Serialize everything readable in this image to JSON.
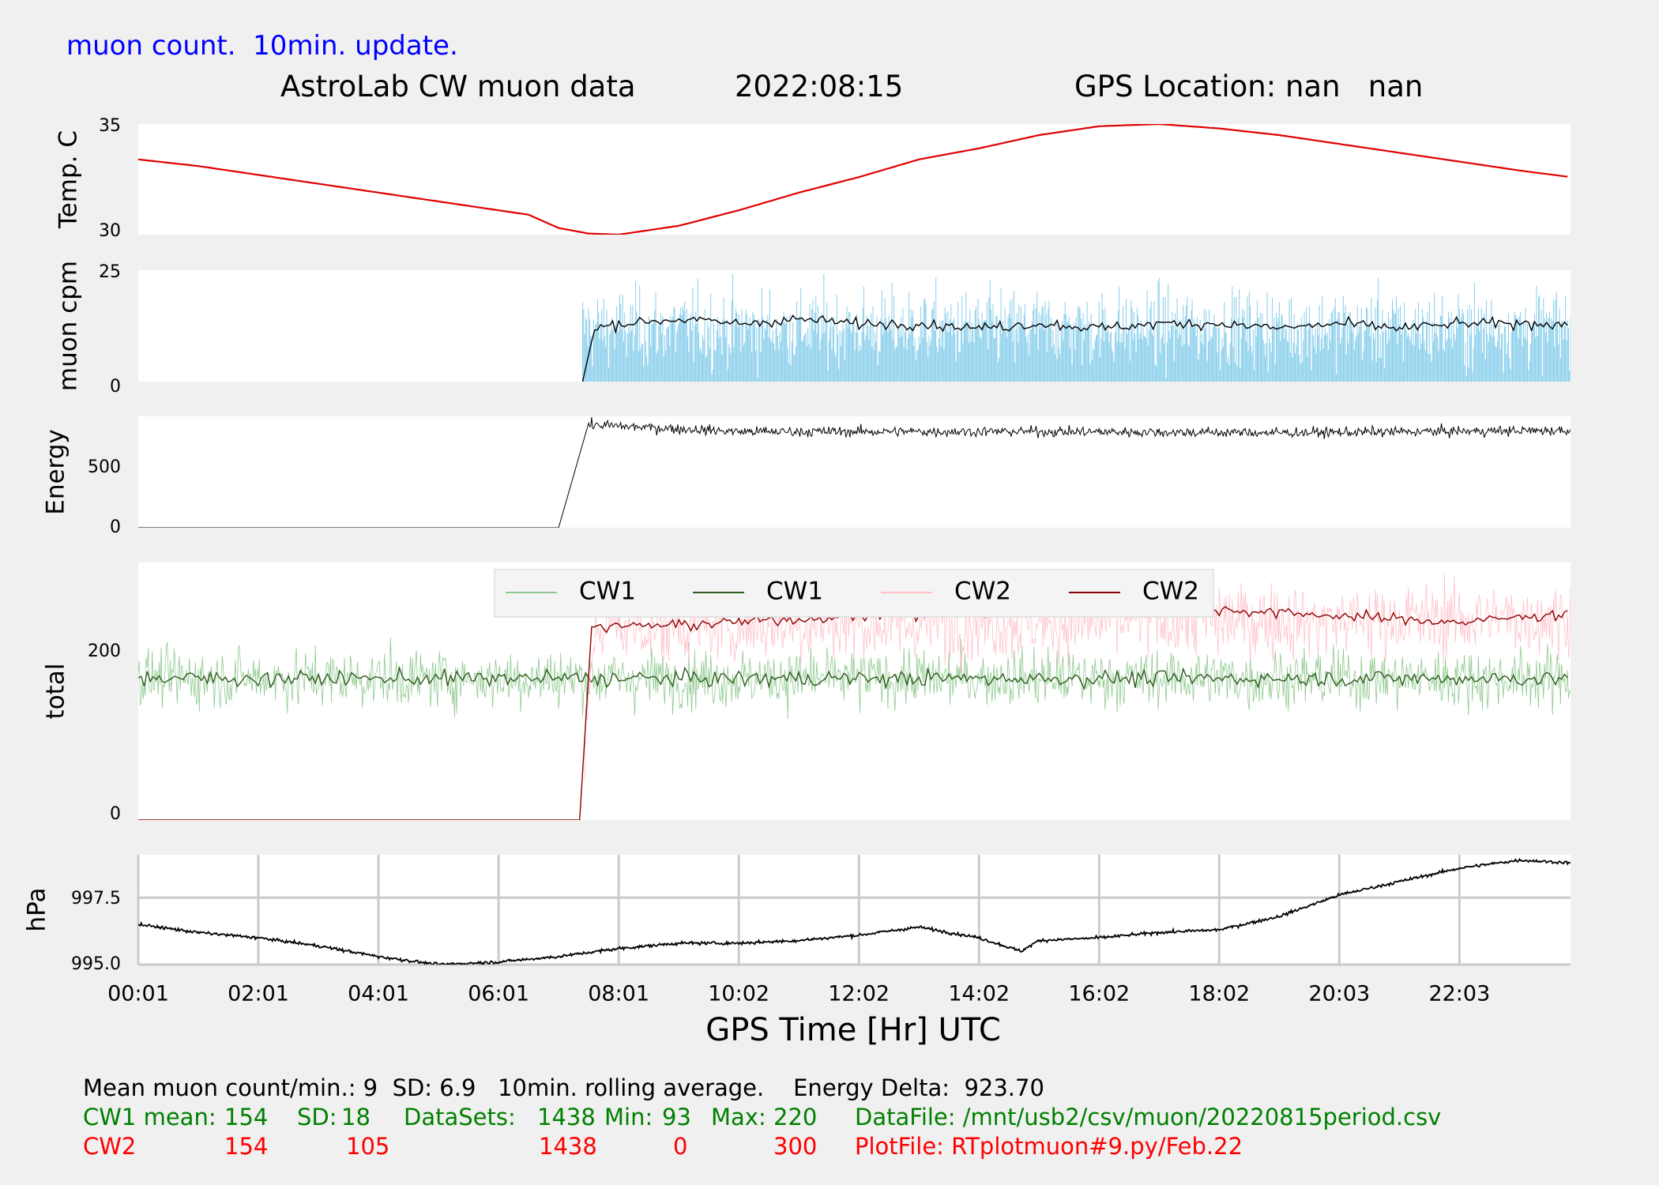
{
  "header": {
    "update_note": "muon count.  10min. update.",
    "title": "AstroLab CW muon data",
    "date": "2022:08:15",
    "gps_location": "GPS Location: nan   nan"
  },
  "xaxis": {
    "label": "GPS Time  [Hr] UTC",
    "ticks": [
      "00:01",
      "02:01",
      "04:01",
      "06:01",
      "08:01",
      "10:02",
      "12:02",
      "14:02",
      "16:02",
      "18:02",
      "20:03",
      "22:03"
    ],
    "range_hours": [
      0,
      23.85
    ]
  },
  "colors": {
    "temperature": "#e00000",
    "muon_bars": "#87ceeb",
    "muon_avg": "#000000",
    "energy": "#000000",
    "cw1_raw": "#8fc98f",
    "cw1_avg": "#2e5c1e",
    "cw2_raw": "#ffc0c8",
    "cw2_avg": "#8b0000",
    "pressure": "#000000"
  },
  "chart_data": [
    {
      "type": "line",
      "ylabel": "Temp. C",
      "ylim": [
        30,
        35
      ],
      "yticks": [
        "35",
        "30"
      ],
      "series": [
        {
          "x": [
            0,
            1,
            2,
            3,
            4,
            5,
            6.5,
            7,
            7.5,
            8,
            9,
            10,
            11,
            12,
            13,
            14,
            15,
            16,
            17,
            18,
            19,
            20,
            21,
            22,
            23,
            23.85
          ],
          "values": [
            33.4,
            33.1,
            32.7,
            32.3,
            31.9,
            31.5,
            30.9,
            30.3,
            30.05,
            30.0,
            30.4,
            31.1,
            31.9,
            32.6,
            33.4,
            33.9,
            34.5,
            34.9,
            35.0,
            34.8,
            34.5,
            34.1,
            33.7,
            33.3,
            32.9,
            32.6
          ]
        }
      ]
    },
    {
      "type": "bar",
      "ylabel": "muon cpm",
      "ylim": [
        0,
        25
      ],
      "yticks": [
        "25",
        "0"
      ],
      "start_hour": 7.4,
      "mean": 9,
      "sd": 6.9,
      "series": [
        {
          "name": "10min. rolling average",
          "x": [
            7.4,
            7.6,
            8,
            9,
            10,
            11,
            12,
            13,
            14,
            15,
            16,
            17,
            18,
            19,
            20,
            21,
            22,
            23,
            23.85
          ],
          "values": [
            0,
            12,
            13,
            14,
            13,
            14,
            13,
            13,
            12,
            13,
            12,
            13,
            13,
            12,
            13,
            12,
            13,
            13,
            13
          ]
        }
      ]
    },
    {
      "type": "line",
      "ylabel": "Energy",
      "ylim": [
        0,
        950
      ],
      "yticks": [
        "500",
        "0"
      ],
      "series": [
        {
          "x": [
            0,
            7.35,
            7.4,
            10,
            15,
            19,
            23.85
          ],
          "values": [
            0,
            0,
            880,
            820,
            820,
            810,
            830
          ]
        }
      ]
    },
    {
      "type": "line",
      "ylabel": "total",
      "ylim": [
        0,
        280
      ],
      "yticks": [
        "200",
        "0"
      ],
      "legend": [
        "CW1",
        "CW1",
        "CW2",
        "CW2"
      ],
      "legend_loc": "top-center",
      "series": [
        {
          "name": "CW1",
          "style": "raw",
          "x": [
            0,
            23.85
          ],
          "values": [
            154,
            154
          ],
          "min": 93,
          "max": 220
        },
        {
          "name": "CW1",
          "style": "avg",
          "x": [
            0,
            23.85
          ],
          "values": [
            154,
            154
          ]
        },
        {
          "name": "CW2",
          "style": "raw",
          "x": [
            0,
            7.35,
            7.6,
            23.85
          ],
          "values": [
            0,
            0,
            210,
            220
          ],
          "min": 0,
          "max": 300
        },
        {
          "name": "CW2",
          "style": "avg",
          "x": [
            0,
            7.35,
            7.55,
            9,
            12,
            15,
            17,
            20,
            22,
            23.85
          ],
          "values": [
            0,
            0,
            210,
            212,
            222,
            225,
            232,
            222,
            215,
            225
          ]
        }
      ]
    },
    {
      "type": "line",
      "ylabel": "hPa",
      "ylim": [
        995.0,
        999.1
      ],
      "yticks": [
        "997.5",
        "995.0"
      ],
      "grid": true,
      "series": [
        {
          "x": [
            0,
            1,
            2,
            3,
            4,
            5,
            6,
            7,
            8,
            9,
            10,
            11,
            12,
            13,
            14,
            14.7,
            15,
            16,
            17,
            18,
            19,
            20,
            21,
            22,
            23,
            23.85
          ],
          "values": [
            996.5,
            996.2,
            996.0,
            995.7,
            995.3,
            995.0,
            995.1,
            995.3,
            995.6,
            995.8,
            995.8,
            995.9,
            996.1,
            996.4,
            996.0,
            995.5,
            995.9,
            996.0,
            996.2,
            996.3,
            996.8,
            997.6,
            998.1,
            998.6,
            998.9,
            998.8
          ]
        }
      ]
    }
  ],
  "stats": {
    "line1": "Mean muon count/min.: 9  SD: 6.9   10min. rolling average.    Energy Delta:  923.70",
    "cw1": {
      "label": "CW1 mean:",
      "mean": "154",
      "sd_label": "SD:",
      "sd": "18",
      "datasets_label": "DataSets:",
      "datasets": "1438",
      "min_label": "Min:",
      "min": "93",
      "max_label": "Max:",
      "max": "220",
      "file": "DataFile: /mnt/usb2/csv/muon/20220815period.csv"
    },
    "cw2": {
      "label": "CW2",
      "mean": "154",
      "sd": "105",
      "datasets": "1438",
      "min": "0",
      "max": "300",
      "file": "PlotFile: RTplotmuon#9.py/Feb.22"
    }
  }
}
